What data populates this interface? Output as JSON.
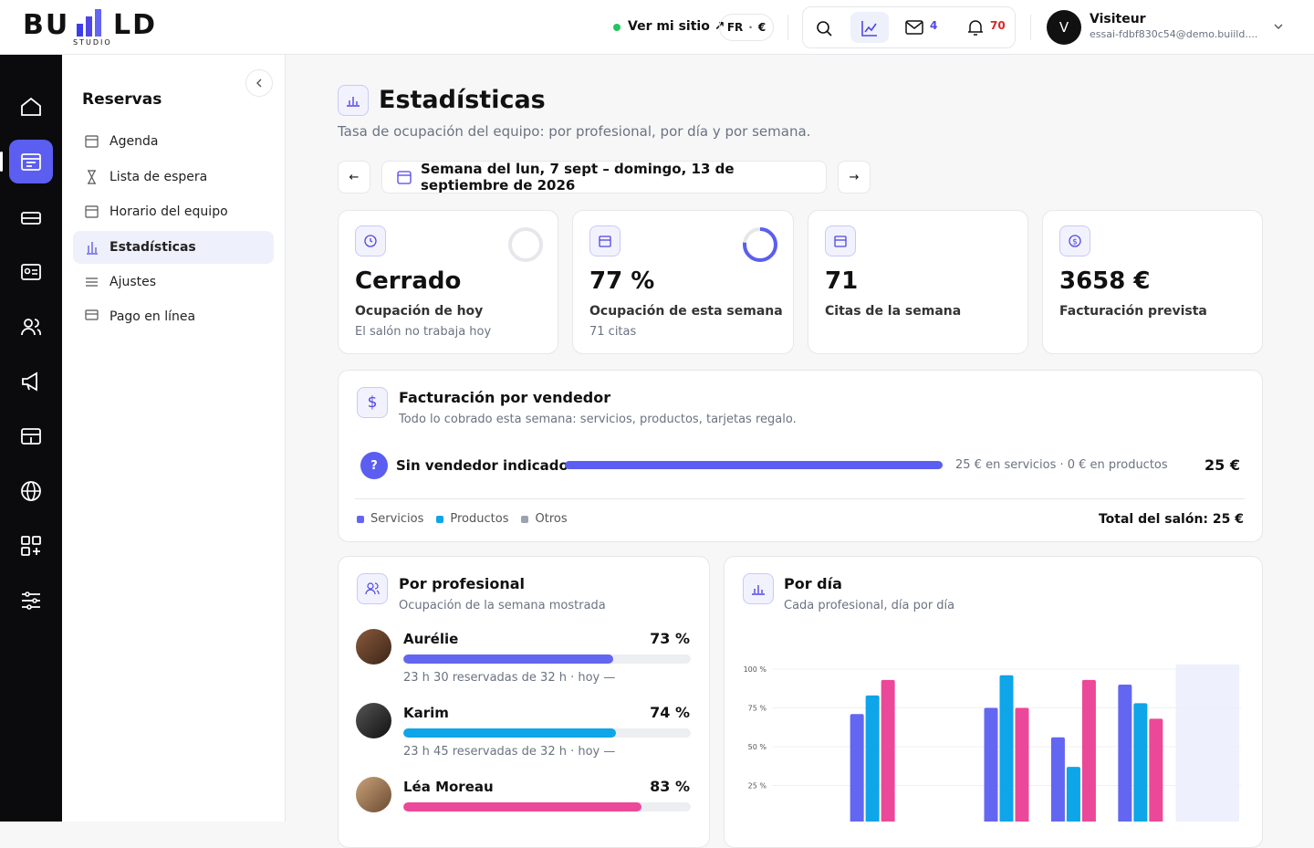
{
  "header": {
    "logo_left": "BU",
    "logo_right": "LD",
    "logo_sub": "STUDIO",
    "site_link": "Ver mi sitio ↗",
    "lang": "FR",
    "currency": "€",
    "mail_count": "4",
    "bell_count": "70",
    "avatar": "V",
    "user_name": "Visiteur",
    "user_email": "essai-fdbf830c54@demo.buiild...."
  },
  "sidebar": {
    "title": "Reservas",
    "items": [
      "Agenda",
      "Lista de espera",
      "Horario del equipo",
      "Estadísticas",
      "Ajustes",
      "Pago en línea"
    ]
  },
  "page": {
    "title": "Estadísticas",
    "subtitle": "Tasa de ocupación del equipo: por profesional, por día y por semana.",
    "prev": "←",
    "next": "→",
    "week": "Semana del lun, 7 sept – domingo, 13 de septiembre de 2026"
  },
  "kpis": [
    {
      "value_label": "Cerrado",
      "label": "Ocupación de hoy",
      "note": "El salón no trabaja hoy"
    },
    {
      "value": 77,
      "value_label": "77 %",
      "label": "Ocupación de esta semana",
      "note": "71 citas"
    },
    {
      "value": 71,
      "label": "Citas de la semana"
    },
    {
      "value": 3658,
      "value_label": "3658 €",
      "label": "Facturación prevista"
    }
  ],
  "vendors": {
    "title": "Facturación por vendedor",
    "subtitle": "Todo lo cobrado esta semana: servicios, productos, tarjetas regalo.",
    "rows": [
      {
        "badge": "?",
        "name": "Sin vendedor indicado",
        "detail": "25 € en servicios · 0 € en productos",
        "total": "25 €"
      }
    ],
    "legend": [
      {
        "name": "Servicios",
        "color": "#6366f1"
      },
      {
        "name": "Productos",
        "color": "#0ea5e9"
      },
      {
        "name": "Otros",
        "color": "#9ca3af"
      }
    ],
    "grand_total": "Total del salón: 25 €"
  },
  "professionals": {
    "title": "Por profesional",
    "subtitle": "Ocupación de la semana mostrada",
    "people": [
      {
        "name": "Aurélie",
        "value": 73,
        "value_label": "73 %",
        "detail": "23 h 30 reservadas de 32 h · hoy —",
        "color": "#6366f1"
      },
      {
        "name": "Karim",
        "value": 74,
        "value_label": "74 %",
        "detail": "23 h 45 reservadas de 32 h · hoy —",
        "color": "#0ea5e9"
      },
      {
        "name": "Léa Moreau",
        "value": 83,
        "value_label": "83 %",
        "color": "#ec4899"
      }
    ]
  },
  "chart_data": {
    "type": "bar",
    "title": "Por día",
    "subtitle": "Cada profesional, día por día",
    "categories": [
      null,
      null,
      null,
      null,
      null,
      null,
      null
    ],
    "series": [
      {
        "name": "Aurélie",
        "color": "#6366f1",
        "values": [
          null,
          71,
          null,
          75,
          56,
          90,
          null
        ]
      },
      {
        "name": "Karim",
        "color": "#0ea5e9",
        "values": [
          null,
          83,
          null,
          96,
          37,
          78,
          null
        ]
      },
      {
        "name": "Léa Moreau",
        "color": "#ec4899",
        "values": [
          null,
          93,
          null,
          75,
          93,
          68,
          null
        ]
      }
    ],
    "ylim": [
      0,
      100
    ],
    "yticks": [
      {
        "value": 25,
        "label": "25 %"
      },
      {
        "value": 50,
        "label": "50 %"
      },
      {
        "value": 75,
        "label": "75 %"
      },
      {
        "value": 100,
        "label": "100 %"
      }
    ],
    "grid": true,
    "highlight": 6
  }
}
